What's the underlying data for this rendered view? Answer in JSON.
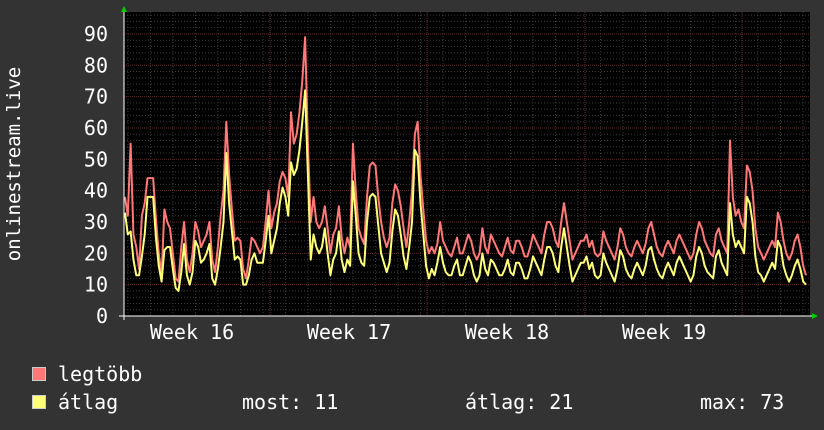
{
  "chart_data": {
    "type": "line",
    "ylabel": "onlinestream.live",
    "xlabel": "",
    "title": "",
    "ylim": [
      0,
      97
    ],
    "yticks": [
      "0",
      "10",
      "20",
      "30",
      "40",
      "50",
      "60",
      "70",
      "80",
      "90"
    ],
    "xticks": [
      "Week 16",
      "Week 17",
      "Week 18",
      "Week 19"
    ],
    "grid": true,
    "legend_placement": "bottom-left",
    "series": [
      {
        "name": "legtöbb",
        "color": "#ff7777",
        "values": [
          38,
          32,
          55,
          26,
          22,
          15,
          32,
          36,
          44,
          44,
          44,
          31,
          20,
          13,
          34,
          30,
          28,
          20,
          12,
          11,
          22,
          30,
          18,
          14,
          20,
          30,
          27,
          22,
          24,
          26,
          30,
          18,
          14,
          22,
          32,
          40,
          62,
          45,
          34,
          24,
          25,
          24,
          15,
          12,
          18,
          25,
          24,
          22,
          20,
          22,
          30,
          40,
          28,
          33,
          36,
          43,
          46,
          44,
          38,
          65,
          55,
          58,
          65,
          75,
          89,
          55,
          30,
          38,
          30,
          28,
          30,
          35,
          28,
          20,
          26,
          28,
          35,
          25,
          20,
          25,
          22,
          55,
          40,
          28,
          25,
          23,
          38,
          48,
          49,
          48,
          38,
          30,
          25,
          22,
          25,
          36,
          42,
          40,
          35,
          28,
          22,
          30,
          40,
          58,
          62,
          45,
          34,
          24,
          20,
          22,
          20,
          23,
          30,
          24,
          22,
          20,
          19,
          22,
          25,
          20,
          20,
          23,
          26,
          24,
          20,
          18,
          20,
          28,
          22,
          20,
          26,
          24,
          22,
          20,
          19,
          22,
          25,
          21,
          20,
          24,
          24,
          22,
          19,
          19,
          22,
          26,
          24,
          22,
          20,
          26,
          30,
          30,
          28,
          24,
          22,
          30,
          36,
          30,
          24,
          18,
          20,
          22,
          24,
          24,
          26,
          22,
          24,
          20,
          19,
          20,
          27,
          24,
          22,
          20,
          18,
          22,
          28,
          26,
          22,
          20,
          19,
          22,
          24,
          22,
          20,
          23,
          28,
          30,
          26,
          22,
          20,
          19,
          22,
          24,
          22,
          20,
          24,
          26,
          24,
          22,
          20,
          18,
          20,
          26,
          30,
          28,
          24,
          22,
          20,
          19,
          26,
          28,
          24,
          22,
          20,
          56,
          38,
          32,
          34,
          30,
          28,
          48,
          46,
          40,
          28,
          22,
          20,
          18,
          20,
          22,
          24,
          22,
          33,
          30,
          24,
          20,
          18,
          20,
          24,
          26,
          22,
          16,
          13
        ]
      },
      {
        "name": "átlag",
        "color": "#ffff77",
        "values": [
          33,
          26,
          27,
          18,
          13,
          13,
          19,
          26,
          38,
          38,
          38,
          25,
          16,
          11,
          21,
          22,
          22,
          15,
          9,
          8,
          14,
          23,
          13,
          10,
          14,
          24,
          22,
          17,
          18,
          20,
          23,
          12,
          10,
          15,
          22,
          30,
          52,
          36,
          27,
          18,
          19,
          18,
          10,
          10,
          13,
          18,
          20,
          17,
          17,
          17,
          24,
          32,
          20,
          24,
          28,
          36,
          41,
          38,
          32,
          49,
          45,
          47,
          53,
          62,
          72,
          45,
          18,
          26,
          22,
          20,
          22,
          28,
          20,
          13,
          18,
          20,
          27,
          18,
          14,
          18,
          16,
          43,
          32,
          20,
          17,
          16,
          30,
          38,
          39,
          38,
          29,
          20,
          17,
          14,
          17,
          27,
          34,
          32,
          26,
          19,
          15,
          22,
          30,
          53,
          51,
          36,
          26,
          16,
          12,
          15,
          13,
          17,
          22,
          17,
          14,
          13,
          13,
          16,
          18,
          13,
          13,
          16,
          19,
          17,
          13,
          11,
          13,
          20,
          15,
          13,
          18,
          17,
          15,
          13,
          13,
          15,
          18,
          14,
          13,
          17,
          17,
          15,
          12,
          12,
          15,
          19,
          17,
          15,
          13,
          18,
          22,
          22,
          20,
          16,
          14,
          22,
          28,
          22,
          16,
          11,
          13,
          15,
          17,
          17,
          19,
          15,
          17,
          13,
          12,
          13,
          20,
          17,
          15,
          13,
          11,
          15,
          21,
          19,
          15,
          13,
          12,
          15,
          17,
          15,
          13,
          16,
          21,
          22,
          18,
          15,
          13,
          12,
          15,
          17,
          15,
          13,
          17,
          19,
          17,
          15,
          13,
          11,
          13,
          19,
          22,
          20,
          16,
          14,
          13,
          12,
          19,
          21,
          17,
          15,
          13,
          36,
          26,
          22,
          24,
          22,
          20,
          38,
          36,
          30,
          19,
          14,
          13,
          11,
          13,
          15,
          17,
          15,
          24,
          22,
          16,
          13,
          11,
          13,
          16,
          18,
          15,
          11,
          10
        ]
      }
    ]
  },
  "legend": {
    "items": [
      {
        "label": "legtöbb",
        "color": "#ff7777"
      },
      {
        "label": "átlag",
        "color": "#ffff77"
      }
    ],
    "stats": {
      "most": "most: 11",
      "atlag": "átlag: 21",
      "max": "max: 73"
    }
  }
}
